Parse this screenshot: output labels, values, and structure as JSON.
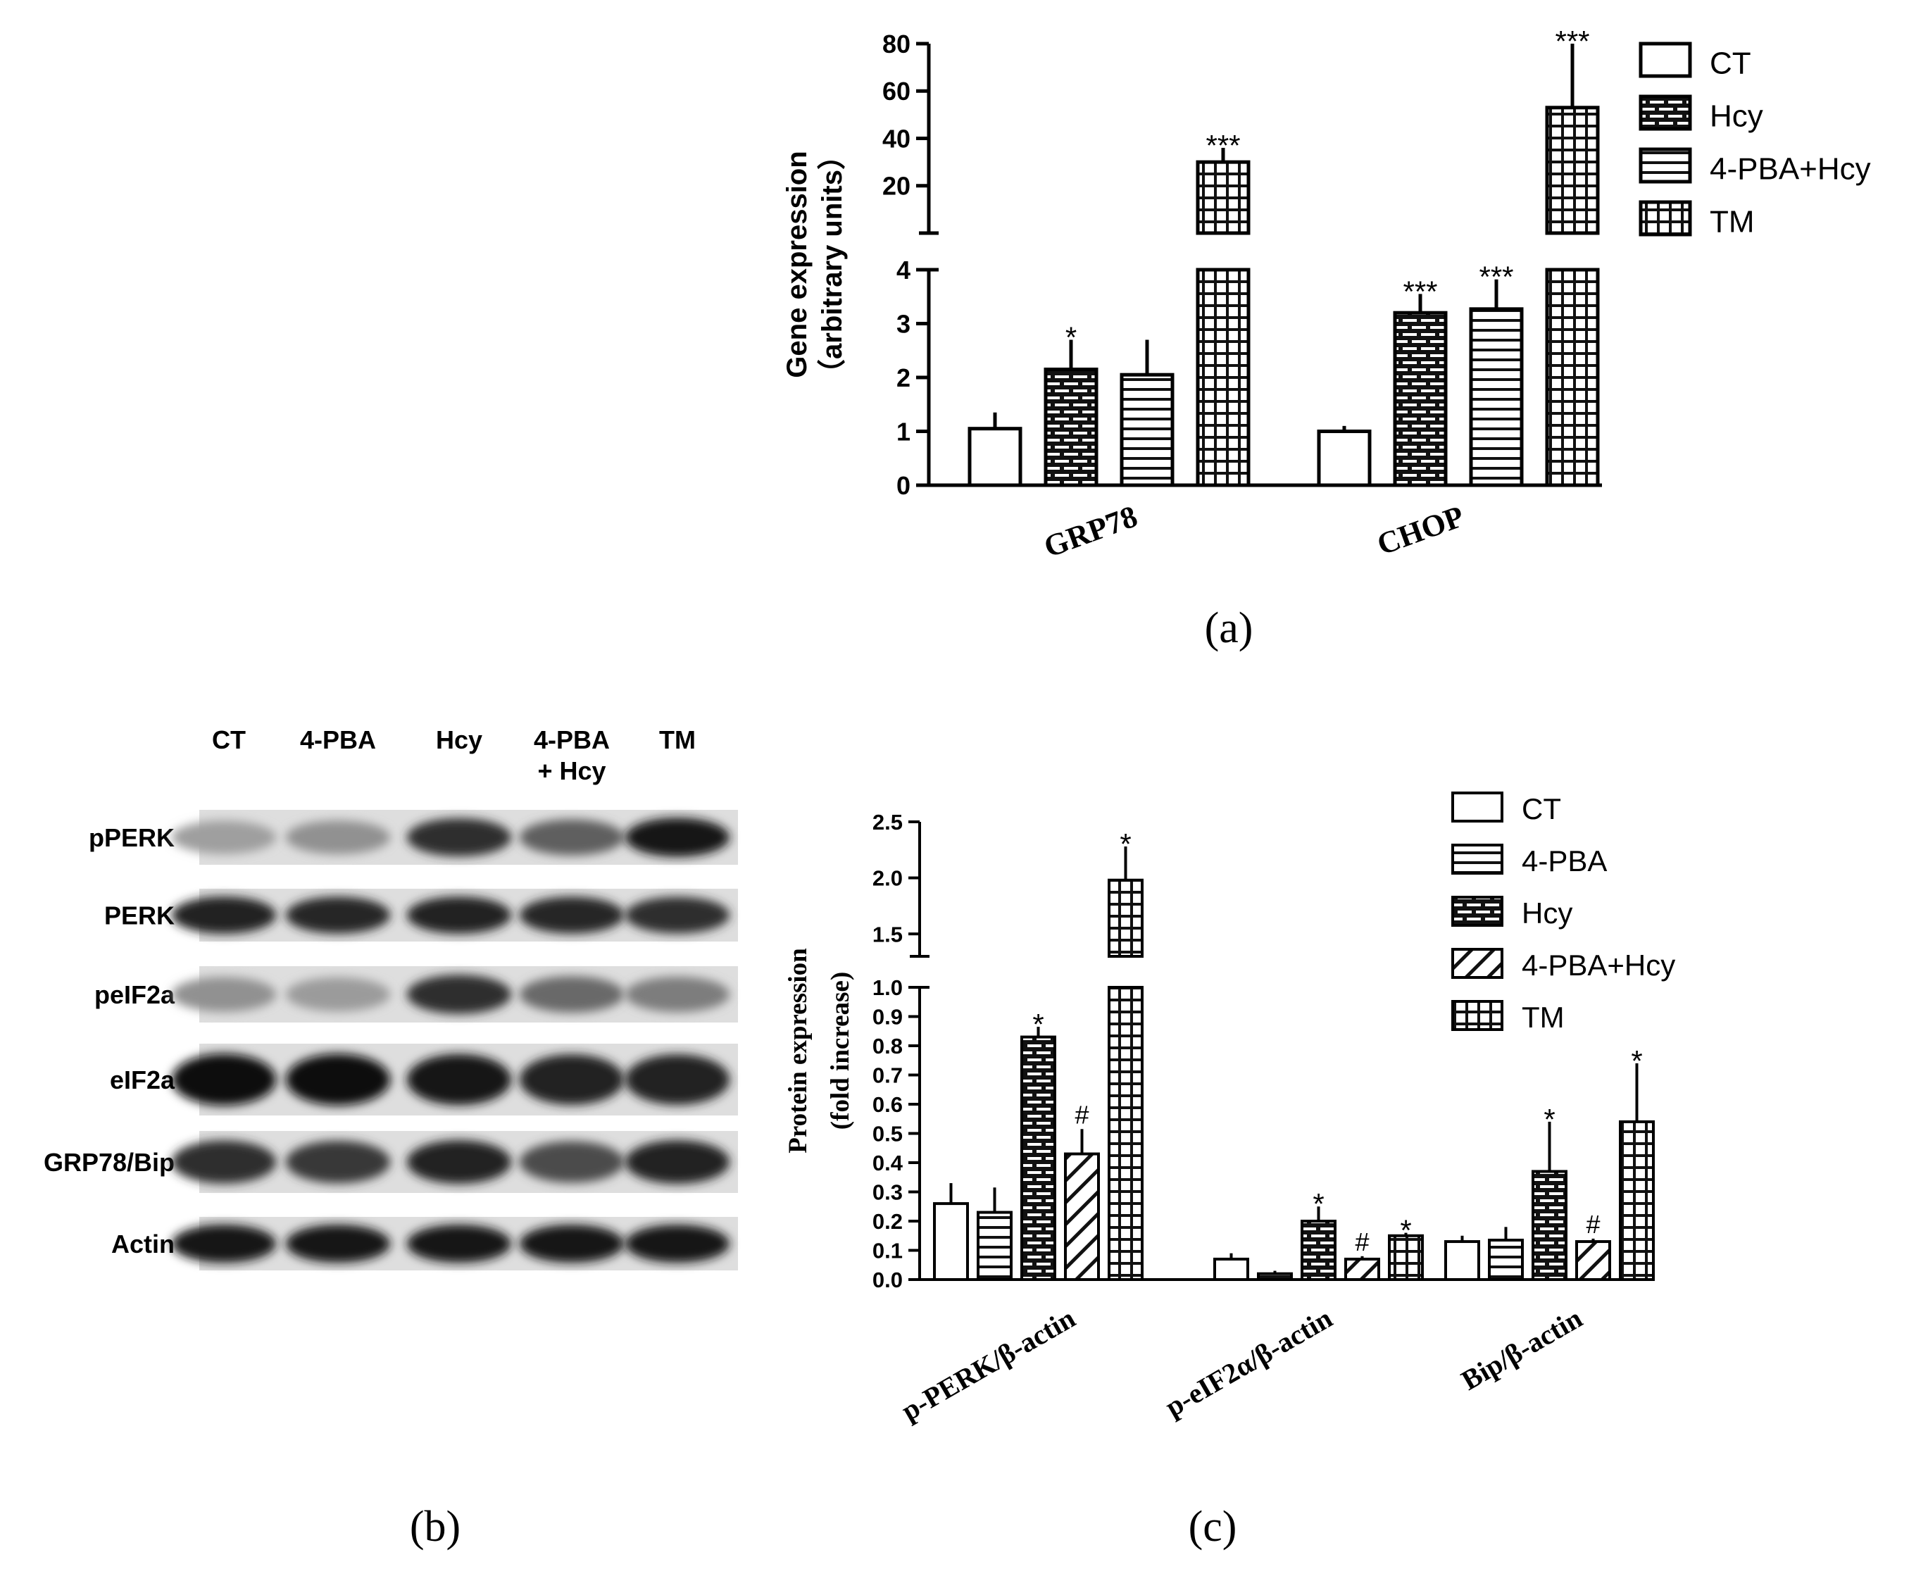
{
  "panel_labels": {
    "a": "(a)",
    "b": "(b)",
    "c": "(c)"
  },
  "blot": {
    "lanes": [
      "CT",
      "4-PBA",
      "Hcy",
      "4-PBA\n+ Hcy",
      "TM"
    ],
    "rows": [
      "pPERK",
      "PERK",
      "peIF2a",
      "eIF2a",
      "GRP78/Bip",
      "Actin"
    ],
    "intensity": [
      [
        0.28,
        0.35,
        0.85,
        0.6,
        0.95
      ],
      [
        0.9,
        0.88,
        0.9,
        0.88,
        0.85
      ],
      [
        0.35,
        0.3,
        0.85,
        0.55,
        0.45
      ],
      [
        1.0,
        1.0,
        0.95,
        0.9,
        0.9
      ],
      [
        0.85,
        0.8,
        0.9,
        0.7,
        0.9
      ],
      [
        0.95,
        0.95,
        0.95,
        0.95,
        0.95
      ]
    ]
  },
  "chart_data": [
    {
      "type": "bar",
      "ylabel": "Gene expression",
      "ylabel2": "（arbitrary units）",
      "categories": [
        "GRP78",
        "CHOP"
      ],
      "series": [
        {
          "name": "CT",
          "pattern": "none",
          "values": [
            1.05,
            1.0
          ],
          "errors": [
            0.3,
            0.1
          ],
          "marks": [
            "",
            ""
          ]
        },
        {
          "name": "Hcy",
          "pattern": "brick",
          "values": [
            2.15,
            3.2
          ],
          "errors": [
            0.55,
            0.35
          ],
          "marks": [
            "*",
            "***"
          ]
        },
        {
          "name": "4-PBA+Hcy",
          "pattern": "hlines",
          "values": [
            2.05,
            3.27
          ],
          "errors": [
            0.65,
            0.55
          ],
          "marks": [
            "",
            "***"
          ]
        },
        {
          "name": "TM",
          "pattern": "grid",
          "values": [
            30,
            53
          ],
          "errors": [
            6,
            27
          ],
          "marks": [
            "***",
            "***"
          ]
        }
      ],
      "broken_axis": {
        "lower": {
          "min": 0,
          "max": 4,
          "ticks": [
            "0",
            "1",
            "2",
            "3",
            "4"
          ]
        },
        "upper": {
          "min": 0,
          "max": 80,
          "ticks": [
            "20",
            "40",
            "60",
            "80"
          ]
        }
      }
    },
    {
      "type": "bar",
      "ylabel": "Protein expression",
      "ylabel2": "(fold increase)",
      "categories": [
        "p-PERK/β-actin",
        "p-eIF2α/β-actin",
        "Bip/β-actin"
      ],
      "series": [
        {
          "name": "CT",
          "pattern": "none",
          "values": [
            0.26,
            0.07,
            0.13
          ],
          "errors": [
            0.07,
            0.02,
            0.02
          ],
          "marks": [
            "",
            "",
            ""
          ]
        },
        {
          "name": "4-PBA",
          "pattern": "hlines",
          "values": [
            0.23,
            0.02,
            0.135
          ],
          "errors": [
            0.085,
            0.01,
            0.045
          ],
          "marks": [
            "",
            "",
            ""
          ]
        },
        {
          "name": "Hcy",
          "pattern": "brick",
          "values": [
            0.83,
            0.2,
            0.37
          ],
          "errors": [
            0.035,
            0.05,
            0.17
          ],
          "marks": [
            "*",
            "*",
            "*"
          ]
        },
        {
          "name": "4-PBA+Hcy",
          "pattern": "diag",
          "values": [
            0.43,
            0.07,
            0.13
          ],
          "errors": [
            0.085,
            0.01,
            0.01
          ],
          "marks": [
            "#",
            "#",
            "#"
          ]
        },
        {
          "name": "TM",
          "pattern": "grid",
          "values": [
            1.98,
            0.15,
            0.54
          ],
          "errors": [
            0.3,
            0.01,
            0.2
          ],
          "marks": [
            "*",
            "*",
            "*"
          ]
        }
      ],
      "broken_axis": {
        "lower": {
          "min": 0,
          "max": 1.0,
          "ticks": [
            "0.0",
            "0.1",
            "0.2",
            "0.3",
            "0.4",
            "0.5",
            "0.6",
            "0.7",
            "0.8",
            "0.9",
            "1.0"
          ]
        },
        "upper": {
          "min": 1.3,
          "max": 2.5,
          "ticks": [
            "1.5",
            "2.0",
            "2.5"
          ]
        }
      }
    }
  ]
}
